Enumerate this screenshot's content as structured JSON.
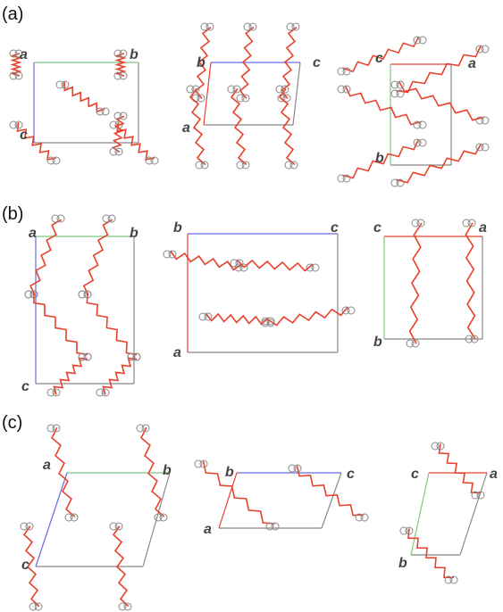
{
  "figure": {
    "panels": [
      {
        "label": "(a)",
        "views": [
          {
            "axes": [
              "a",
              "b",
              "c"
            ]
          },
          {
            "axes": [
              "b",
              "c",
              "a"
            ]
          },
          {
            "axes": [
              "c",
              "a",
              "b"
            ]
          }
        ]
      },
      {
        "label": "(b)",
        "views": [
          {
            "axes": [
              "a",
              "b",
              "c"
            ]
          },
          {
            "axes": [
              "b",
              "c",
              "a"
            ]
          },
          {
            "axes": [
              "c",
              "a",
              "b"
            ]
          }
        ]
      },
      {
        "label": "(c)",
        "views": [
          {
            "axes": [
              "a",
              "b",
              "c"
            ]
          },
          {
            "axes": [
              "b",
              "c",
              "a"
            ]
          },
          {
            "axes": [
              "c",
              "a",
              "b"
            ]
          }
        ]
      }
    ]
  }
}
